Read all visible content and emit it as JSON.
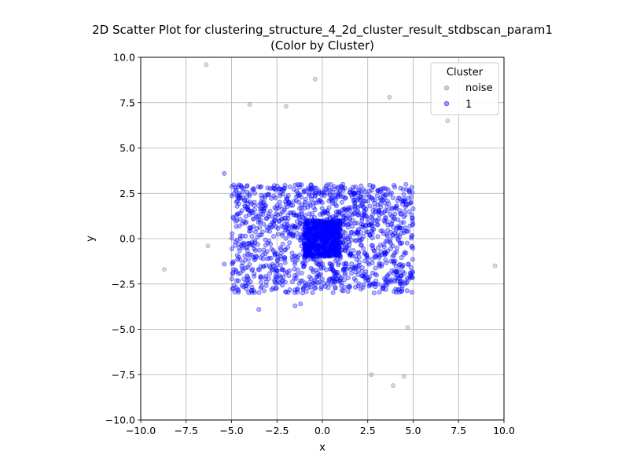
{
  "chart_data": {
    "type": "scatter",
    "title": "2D Scatter Plot for clustering_structure_4_2d_cluster_result_stdbscan_param1",
    "subtitle": "(Color by Cluster)",
    "xlabel": "x",
    "ylabel": "y",
    "xlim": [
      -10,
      10
    ],
    "ylim": [
      -10,
      10
    ],
    "xticks": [
      -10,
      -7.5,
      -5,
      -2.5,
      0,
      2.5,
      5,
      7.5,
      10
    ],
    "yticks": [
      -10,
      -7.5,
      -5,
      -2.5,
      0,
      2.5,
      5,
      7.5,
      10
    ],
    "xtick_labels": [
      "−10.0",
      "−7.5",
      "−5.0",
      "−2.5",
      "0.0",
      "2.5",
      "5.0",
      "7.5",
      "10.0"
    ],
    "ytick_labels": [
      "−10.0",
      "−7.5",
      "−5.0",
      "−2.5",
      "0.0",
      "2.5",
      "5.0",
      "7.5",
      "10.0"
    ],
    "grid": true,
    "legend": {
      "title": "Cluster",
      "position": "top-right",
      "entries": [
        {
          "label": "noise",
          "color": "#808080"
        },
        {
          "label": "1",
          "color": "#0000ff"
        }
      ]
    },
    "series": [
      {
        "name": "noise",
        "color": "#808080",
        "points": [
          [
            -6.4,
            9.6
          ],
          [
            -0.4,
            8.8
          ],
          [
            -4.0,
            7.4
          ],
          [
            -2.0,
            7.3
          ],
          [
            3.7,
            7.8
          ],
          [
            6.9,
            6.5
          ],
          [
            -6.3,
            -0.4
          ],
          [
            -8.7,
            -1.7
          ],
          [
            9.5,
            -1.5
          ],
          [
            4.7,
            -4.9
          ],
          [
            2.7,
            -7.5
          ],
          [
            4.5,
            -7.6
          ],
          [
            3.9,
            -8.1
          ]
        ]
      },
      {
        "name": "1",
        "color": "#0000ff",
        "regions": [
          {
            "shape": "uniform-rectangle",
            "x_range": [
              -5.0,
              5.0
            ],
            "y_range": [
              -3.0,
              3.0
            ],
            "count": 1400
          },
          {
            "shape": "dense-square",
            "x_range": [
              -1.0,
              1.0
            ],
            "y_range": [
              -1.0,
              1.0
            ],
            "count": 700
          }
        ],
        "points": [
          [
            -5.4,
            3.6
          ],
          [
            -5.4,
            -1.4
          ],
          [
            -3.5,
            -3.9
          ],
          [
            -1.5,
            -3.7
          ],
          [
            -1.2,
            -3.6
          ]
        ]
      }
    ]
  }
}
